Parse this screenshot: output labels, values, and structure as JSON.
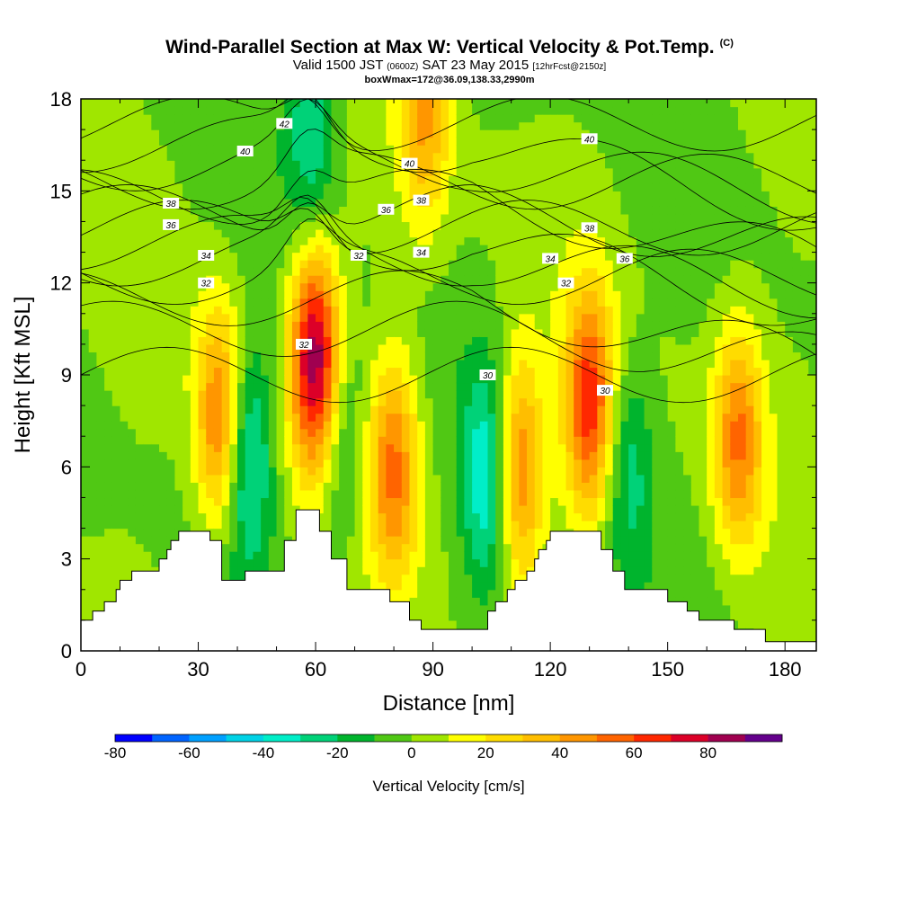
{
  "header": {
    "title": "Wind-Parallel Section at Max W: Vertical Velocity & Pot.Temp.",
    "copyright": "(C)",
    "valid_prefix": "Valid 1500 JST",
    "valid_z": "(0600Z)",
    "valid_date": "SAT 23 May 2015",
    "forecast": "[12hrFcst@2150z]",
    "box_info": "boxWmax=172@36.09,138.33,2990m"
  },
  "chart_data": {
    "type": "heatmap",
    "title": "Wind-Parallel Section at Max W: Vertical Velocity & Pot.Temp.",
    "xlabel": "Distance [nm]",
    "ylabel": "Height [Kft MSL]",
    "xlim": [
      0,
      188
    ],
    "ylim": [
      0,
      18
    ],
    "x_ticks": [
      "0",
      "30",
      "60",
      "90",
      "120",
      "150",
      "180"
    ],
    "y_ticks": [
      "0",
      "3",
      "6",
      "9",
      "12",
      "15",
      "18"
    ],
    "colorbar": {
      "title": "Vertical Velocity [cm/s]",
      "levels": [
        -80,
        -70,
        -60,
        -50,
        -40,
        -30,
        -20,
        -10,
        0,
        10,
        20,
        30,
        40,
        50,
        60,
        70,
        80,
        90
      ],
      "tick_labels": [
        "-80",
        "-60",
        "-40",
        "-20",
        "0",
        "20",
        "40",
        "60",
        "80"
      ],
      "colors": [
        "#0000ff",
        "#0064ff",
        "#00a0ff",
        "#00d2e6",
        "#00eec8",
        "#00d278",
        "#00b42d",
        "#50c814",
        "#a0e600",
        "#ffff00",
        "#ffdc00",
        "#ffbe00",
        "#ff9600",
        "#ff6400",
        "#ff2800",
        "#dc0028",
        "#a00050",
        "#64008c"
      ]
    },
    "vertical_velocity_features": [
      {
        "x": 36,
        "z": 7.5,
        "w": 60
      },
      {
        "x": 42,
        "z": 6.5,
        "w": -45
      },
      {
        "x": 60,
        "z": 9.5,
        "w": 90
      },
      {
        "x": 66,
        "z": 7,
        "w": -25
      },
      {
        "x": 80,
        "z": 6,
        "w": 50
      },
      {
        "x": 104,
        "z": 5.5,
        "w": -40
      },
      {
        "x": 112,
        "z": 6,
        "w": 55
      },
      {
        "x": 130,
        "z": 8,
        "w": 65
      },
      {
        "x": 140,
        "z": 6,
        "w": -25
      },
      {
        "x": 168,
        "z": 7,
        "w": 50
      },
      {
        "x": 88,
        "z": 17.5,
        "w": 40
      },
      {
        "x": 59,
        "z": 17,
        "w": -30
      }
    ],
    "pot_temp_contours": [
      {
        "label": "30",
        "x": 104,
        "z": 9
      },
      {
        "label": "30",
        "x": 134,
        "z": 8.5
      },
      {
        "label": "32",
        "x": 32,
        "z": 12
      },
      {
        "label": "32",
        "x": 57,
        "z": 10
      },
      {
        "label": "32",
        "x": 71,
        "z": 12.9
      },
      {
        "label": "32",
        "x": 124,
        "z": 12
      },
      {
        "label": "34",
        "x": 32,
        "z": 12.9
      },
      {
        "label": "34",
        "x": 87,
        "z": 13
      },
      {
        "label": "34",
        "x": 120,
        "z": 12.8
      },
      {
        "label": "36",
        "x": 23,
        "z": 13.9
      },
      {
        "label": "36",
        "x": 78,
        "z": 14.4
      },
      {
        "label": "36",
        "x": 139,
        "z": 12.8
      },
      {
        "label": "38",
        "x": 23,
        "z": 14.6
      },
      {
        "label": "38",
        "x": 87,
        "z": 14.7
      },
      {
        "label": "38",
        "x": 130,
        "z": 13.8
      },
      {
        "label": "40",
        "x": 42,
        "z": 16.3
      },
      {
        "label": "40",
        "x": 84,
        "z": 15.9
      },
      {
        "label": "40",
        "x": 130,
        "z": 16.7
      },
      {
        "label": "42",
        "x": 52,
        "z": 17.2
      }
    ],
    "terrain_profile": [
      [
        0,
        1
      ],
      [
        3,
        1
      ],
      [
        3,
        1.3
      ],
      [
        6,
        1.3
      ],
      [
        6,
        1.6
      ],
      [
        9,
        1.6
      ],
      [
        9,
        2
      ],
      [
        10,
        2
      ],
      [
        10,
        2.3
      ],
      [
        13,
        2.3
      ],
      [
        13,
        2.6
      ],
      [
        20,
        2.6
      ],
      [
        20,
        3
      ],
      [
        22,
        3
      ],
      [
        22,
        3.3
      ],
      [
        23,
        3.3
      ],
      [
        23,
        3.6
      ],
      [
        25,
        3.6
      ],
      [
        25,
        3.9
      ],
      [
        33,
        3.9
      ],
      [
        33,
        3.6
      ],
      [
        36,
        3.6
      ],
      [
        36,
        2.3
      ],
      [
        42,
        2.3
      ],
      [
        42,
        2.6
      ],
      [
        52,
        2.6
      ],
      [
        52,
        3.6
      ],
      [
        55,
        3.6
      ],
      [
        55,
        4.6
      ],
      [
        61,
        4.6
      ],
      [
        61,
        3.9
      ],
      [
        64,
        3.9
      ],
      [
        64,
        3
      ],
      [
        68,
        3
      ],
      [
        68,
        2
      ],
      [
        79,
        2
      ],
      [
        79,
        1.6
      ],
      [
        84,
        1.6
      ],
      [
        84,
        1
      ],
      [
        87,
        1
      ],
      [
        87,
        0.7
      ],
      [
        104,
        0.7
      ],
      [
        104,
        1.3
      ],
      [
        106,
        1.3
      ],
      [
        106,
        1.6
      ],
      [
        109,
        1.6
      ],
      [
        109,
        2
      ],
      [
        111,
        2
      ],
      [
        111,
        2.3
      ],
      [
        114,
        2.3
      ],
      [
        114,
        2.6
      ],
      [
        116,
        2.6
      ],
      [
        116,
        3
      ],
      [
        117,
        3
      ],
      [
        117,
        3.3
      ],
      [
        119,
        3.3
      ],
      [
        119,
        3.6
      ],
      [
        120,
        3.6
      ],
      [
        120,
        3.9
      ],
      [
        133,
        3.9
      ],
      [
        133,
        3.3
      ],
      [
        136,
        3.3
      ],
      [
        136,
        2.6
      ],
      [
        139,
        2.6
      ],
      [
        139,
        2
      ],
      [
        150,
        2
      ],
      [
        150,
        1.6
      ],
      [
        155,
        1.6
      ],
      [
        155,
        1.3
      ],
      [
        158,
        1.3
      ],
      [
        158,
        1
      ],
      [
        167,
        1
      ],
      [
        167,
        0.7
      ],
      [
        175,
        0.7
      ],
      [
        175,
        0.3
      ],
      [
        188,
        0.3
      ]
    ]
  }
}
